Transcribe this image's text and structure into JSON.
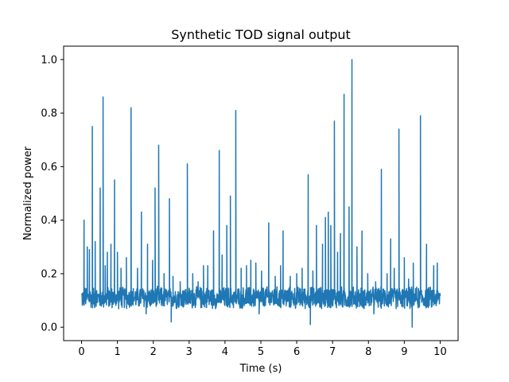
{
  "chart_data": {
    "type": "line",
    "title": "Synthetic TOD signal output",
    "xlabel": "Time (s)",
    "ylabel": "Normalized power",
    "xlim": [
      -0.5,
      10.5
    ],
    "ylim": [
      -0.05,
      1.05
    ],
    "xticks": [
      0,
      1,
      2,
      3,
      4,
      5,
      6,
      7,
      8,
      9,
      10
    ],
    "xtick_labels": [
      "0",
      "1",
      "2",
      "3",
      "4",
      "5",
      "6",
      "7",
      "8",
      "9",
      "10"
    ],
    "yticks": [
      0.0,
      0.2,
      0.4,
      0.6,
      0.8,
      1.0
    ],
    "ytick_labels": [
      "0.0",
      "0.2",
      "0.4",
      "0.6",
      "0.8",
      "1.0"
    ],
    "grid": false,
    "legend": "none",
    "series": [
      {
        "color": "#1f77b4",
        "baseline": 0.11,
        "noise_amplitude": 0.045,
        "x_range": [
          0,
          10
        ],
        "spikes": [
          [
            0.07,
            0.4
          ],
          [
            0.16,
            0.3
          ],
          [
            0.22,
            0.29
          ],
          [
            0.3,
            0.75
          ],
          [
            0.38,
            0.32
          ],
          [
            0.52,
            0.52
          ],
          [
            0.6,
            0.86
          ],
          [
            0.66,
            0.23
          ],
          [
            0.72,
            0.28
          ],
          [
            0.82,
            0.31
          ],
          [
            0.92,
            0.55
          ],
          [
            1.0,
            0.28
          ],
          [
            1.1,
            0.22
          ],
          [
            1.25,
            0.26
          ],
          [
            1.38,
            0.82
          ],
          [
            1.56,
            0.22
          ],
          [
            1.67,
            0.43
          ],
          [
            1.84,
            0.31
          ],
          [
            1.98,
            0.25
          ],
          [
            2.05,
            0.52
          ],
          [
            2.15,
            0.68
          ],
          [
            2.3,
            0.2
          ],
          [
            2.45,
            0.48
          ],
          [
            2.55,
            0.19
          ],
          [
            2.75,
            0.17
          ],
          [
            2.95,
            0.61
          ],
          [
            3.1,
            0.2
          ],
          [
            3.25,
            0.17
          ],
          [
            3.4,
            0.23
          ],
          [
            3.52,
            0.23
          ],
          [
            3.68,
            0.36
          ],
          [
            3.84,
            0.66
          ],
          [
            3.92,
            0.27
          ],
          [
            4.05,
            0.38
          ],
          [
            4.15,
            0.49
          ],
          [
            4.3,
            0.81
          ],
          [
            4.45,
            0.22
          ],
          [
            4.6,
            0.23
          ],
          [
            4.72,
            0.25
          ],
          [
            4.86,
            0.24
          ],
          [
            5.02,
            0.21
          ],
          [
            5.22,
            0.39
          ],
          [
            5.4,
            0.19
          ],
          [
            5.55,
            0.23
          ],
          [
            5.62,
            0.36
          ],
          [
            5.82,
            0.19
          ],
          [
            6.0,
            0.2
          ],
          [
            6.15,
            0.22
          ],
          [
            6.32,
            0.57
          ],
          [
            6.45,
            0.21
          ],
          [
            6.55,
            0.38
          ],
          [
            6.72,
            0.31
          ],
          [
            6.8,
            0.41
          ],
          [
            6.88,
            0.43
          ],
          [
            6.95,
            0.38
          ],
          [
            7.05,
            0.77
          ],
          [
            7.14,
            0.28
          ],
          [
            7.22,
            0.35
          ],
          [
            7.32,
            0.87
          ],
          [
            7.46,
            0.45
          ],
          [
            7.54,
            1.0
          ],
          [
            7.68,
            0.3
          ],
          [
            7.82,
            0.36
          ],
          [
            7.98,
            0.2
          ],
          [
            8.2,
            0.17
          ],
          [
            8.36,
            0.59
          ],
          [
            8.52,
            0.2
          ],
          [
            8.62,
            0.33
          ],
          [
            8.72,
            0.22
          ],
          [
            8.85,
            0.74
          ],
          [
            9.0,
            0.26
          ],
          [
            9.12,
            0.18
          ],
          [
            9.25,
            0.24
          ],
          [
            9.45,
            0.79
          ],
          [
            9.62,
            0.31
          ],
          [
            9.82,
            0.23
          ],
          [
            9.92,
            0.24
          ]
        ],
        "dips": [
          [
            2.5,
            0.02
          ],
          [
            6.38,
            0.01
          ],
          [
            9.22,
            0.0
          ],
          [
            1.8,
            0.05
          ],
          [
            4.95,
            0.05
          ],
          [
            8.15,
            0.05
          ]
        ]
      }
    ]
  }
}
